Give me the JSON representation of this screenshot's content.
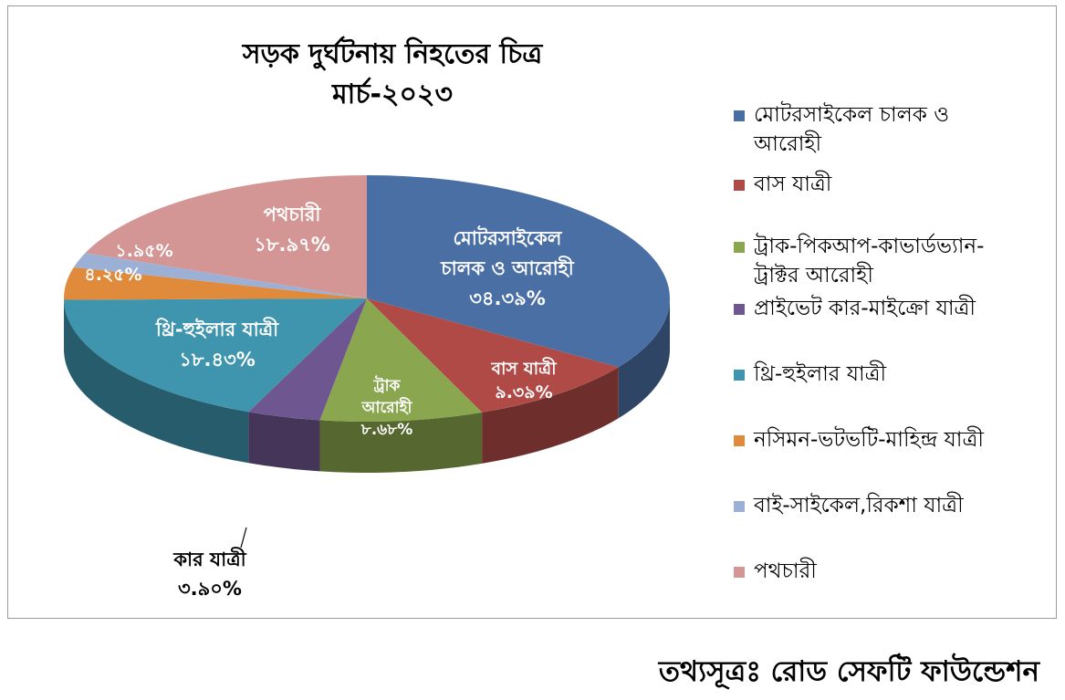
{
  "chart_data": {
    "type": "pie",
    "title_lines": [
      "সড়ক দুর্ঘটনায় নিহতের চিত্র",
      "মার্চ-২০২৩"
    ],
    "slices": [
      {
        "label": "মোটরসাইকেল চালক ও আরোহী",
        "data_label_lines": [
          "মোটরসাইকেল",
          "চালক ও আরোহী"
        ],
        "pct_text": "৩৪.৩৯%",
        "value": 34.39,
        "color": "#4a6fa5"
      },
      {
        "label": "বাস যাত্রী",
        "data_label_lines": [
          "বাস যাত্রী"
        ],
        "pct_text": "৯.৩৯%",
        "value": 9.39,
        "color": "#b04a47"
      },
      {
        "label": "ট্রাক-পিকআপ-কাভার্ডভ্যান-ট্রাক্টর আরোহী",
        "data_label_lines": [
          "ট্রাক",
          "আরোহী"
        ],
        "pct_text": "৮.৬৮%",
        "value": 8.68,
        "color": "#8aa64e"
      },
      {
        "label": "প্রাইভেট কার-মাইক্রো যাত্রী",
        "data_label_lines": [
          "কার যাত্রী"
        ],
        "pct_text": "৩.৯০%",
        "value": 3.9,
        "color": "#6e5690"
      },
      {
        "label": "থ্রি-হুইলার যাত্রী",
        "data_label_lines": [
          "থ্রি-হুইলার যাত্রী"
        ],
        "pct_text": "১৮.৪৩%",
        "value": 18.43,
        "color": "#3e95ad"
      },
      {
        "label": "নসিমন-ভটভটি-মাহিন্দ্র যাত্রী",
        "data_label_lines": [],
        "pct_text": "৪.২৫%",
        "value": 4.25,
        "color": "#e08a3c"
      },
      {
        "label": "বাই-সাইকেল,রিকশা যাত্রী",
        "data_label_lines": [],
        "pct_text": "১.৯৫%",
        "value": 1.95,
        "color": "#9cb0d6"
      },
      {
        "label": "পথচারী",
        "data_label_lines": [
          "পথচারী"
        ],
        "pct_text": "১৮.৯৭%",
        "value": 18.97,
        "color": "#d49595"
      }
    ],
    "legend_position": "right",
    "style": "3d-pie"
  },
  "legend_items": [
    {
      "label_lines": [
        "মোটরসাইকেল চালক ও",
        "আরোহী"
      ],
      "color": "#4a6fa5"
    },
    {
      "label_lines": [
        "বাস যাত্রী"
      ],
      "color": "#b04a47"
    },
    {
      "label_lines": [
        "ট্রাক-পিকআপ-কাভার্ডভ্যান-",
        "ট্রাক্টর আরোহী"
      ],
      "color": "#8aa64e"
    },
    {
      "label_lines": [
        "প্রাইভেট কার-মাইক্রো যাত্রী"
      ],
      "color": "#6e5690"
    },
    {
      "label_lines": [
        "থ্রি-হুইলার যাত্রী"
      ],
      "color": "#3e95ad"
    },
    {
      "label_lines": [
        "নসিমন-ভটভটি-মাহিন্দ্র যাত্রী"
      ],
      "color": "#e08a3c"
    },
    {
      "label_lines": [
        "বাই-সাইকেল,রিকশা যাত্রী"
      ],
      "color": "#9cb0d6"
    },
    {
      "label_lines": [
        "পথচারী"
      ],
      "color": "#d49595"
    }
  ],
  "source": "তথ্যসূত্রঃ রোড সেফটি ফাউন্ডেশন"
}
